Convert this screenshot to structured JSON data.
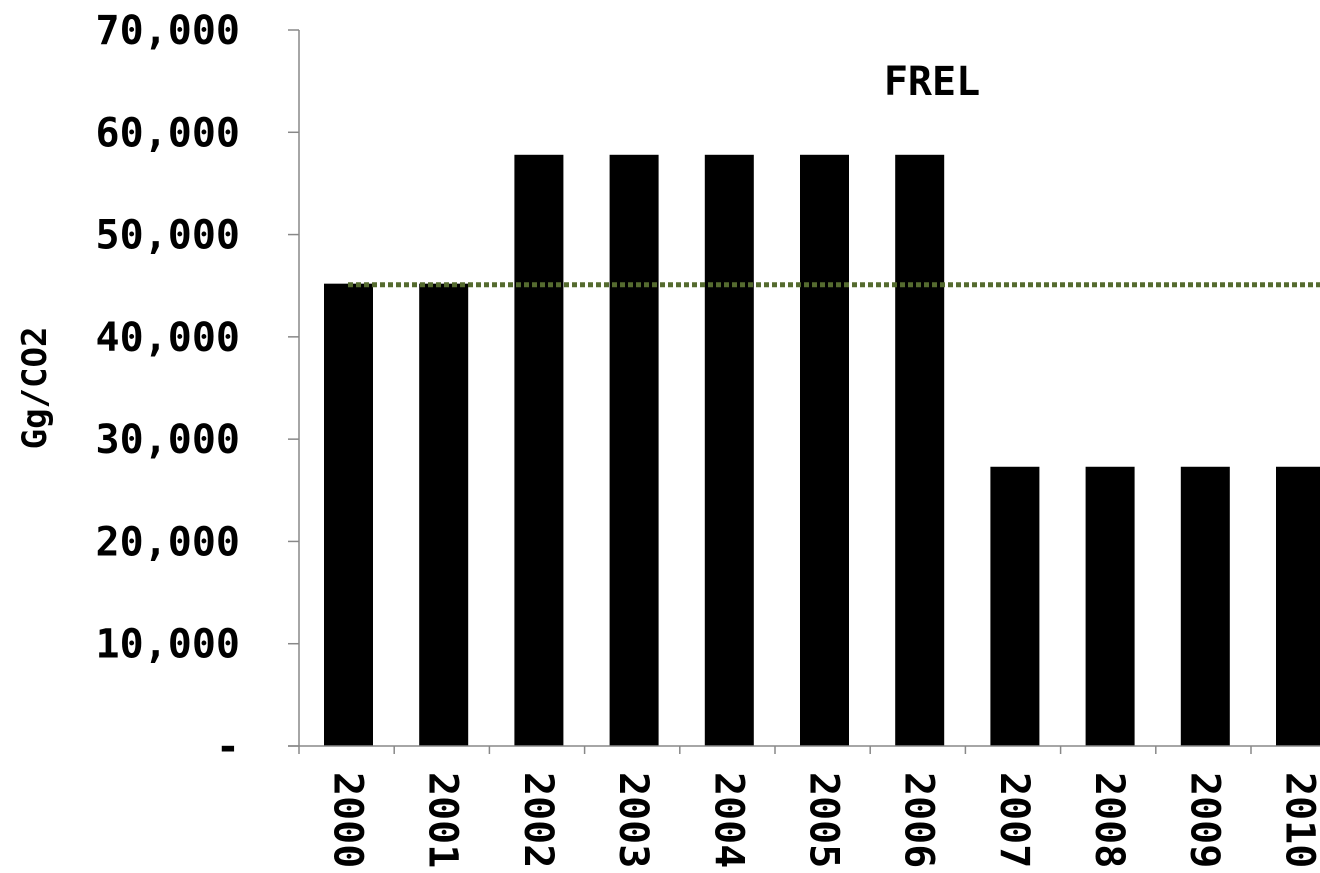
{
  "chart_data": {
    "type": "bar",
    "title": "",
    "xlabel": "",
    "ylabel": "Gg/CO2",
    "categories": [
      "2000",
      "2001",
      "2002",
      "2003",
      "2004",
      "2005",
      "2006",
      "2007",
      "2008",
      "2009",
      "2010"
    ],
    "series": [
      {
        "values": [
          45200,
          45200,
          57800,
          57800,
          57800,
          57800,
          57800,
          27300,
          27300,
          27300,
          27300
        ],
        "color": "#000000"
      }
    ],
    "reference_line": {
      "label": "FREL",
      "value": 45100,
      "color": "#556b2f",
      "style": "dotted"
    },
    "ylim": [
      0,
      70000
    ],
    "yticks": [
      0,
      10000,
      20000,
      30000,
      40000,
      50000,
      60000,
      70000
    ],
    "ytick_labels": [
      "-",
      "10,000",
      "20,000",
      "30,000",
      "40,000",
      "50,000",
      "60,000",
      "70,000"
    ],
    "grid": false,
    "legend": "none"
  }
}
